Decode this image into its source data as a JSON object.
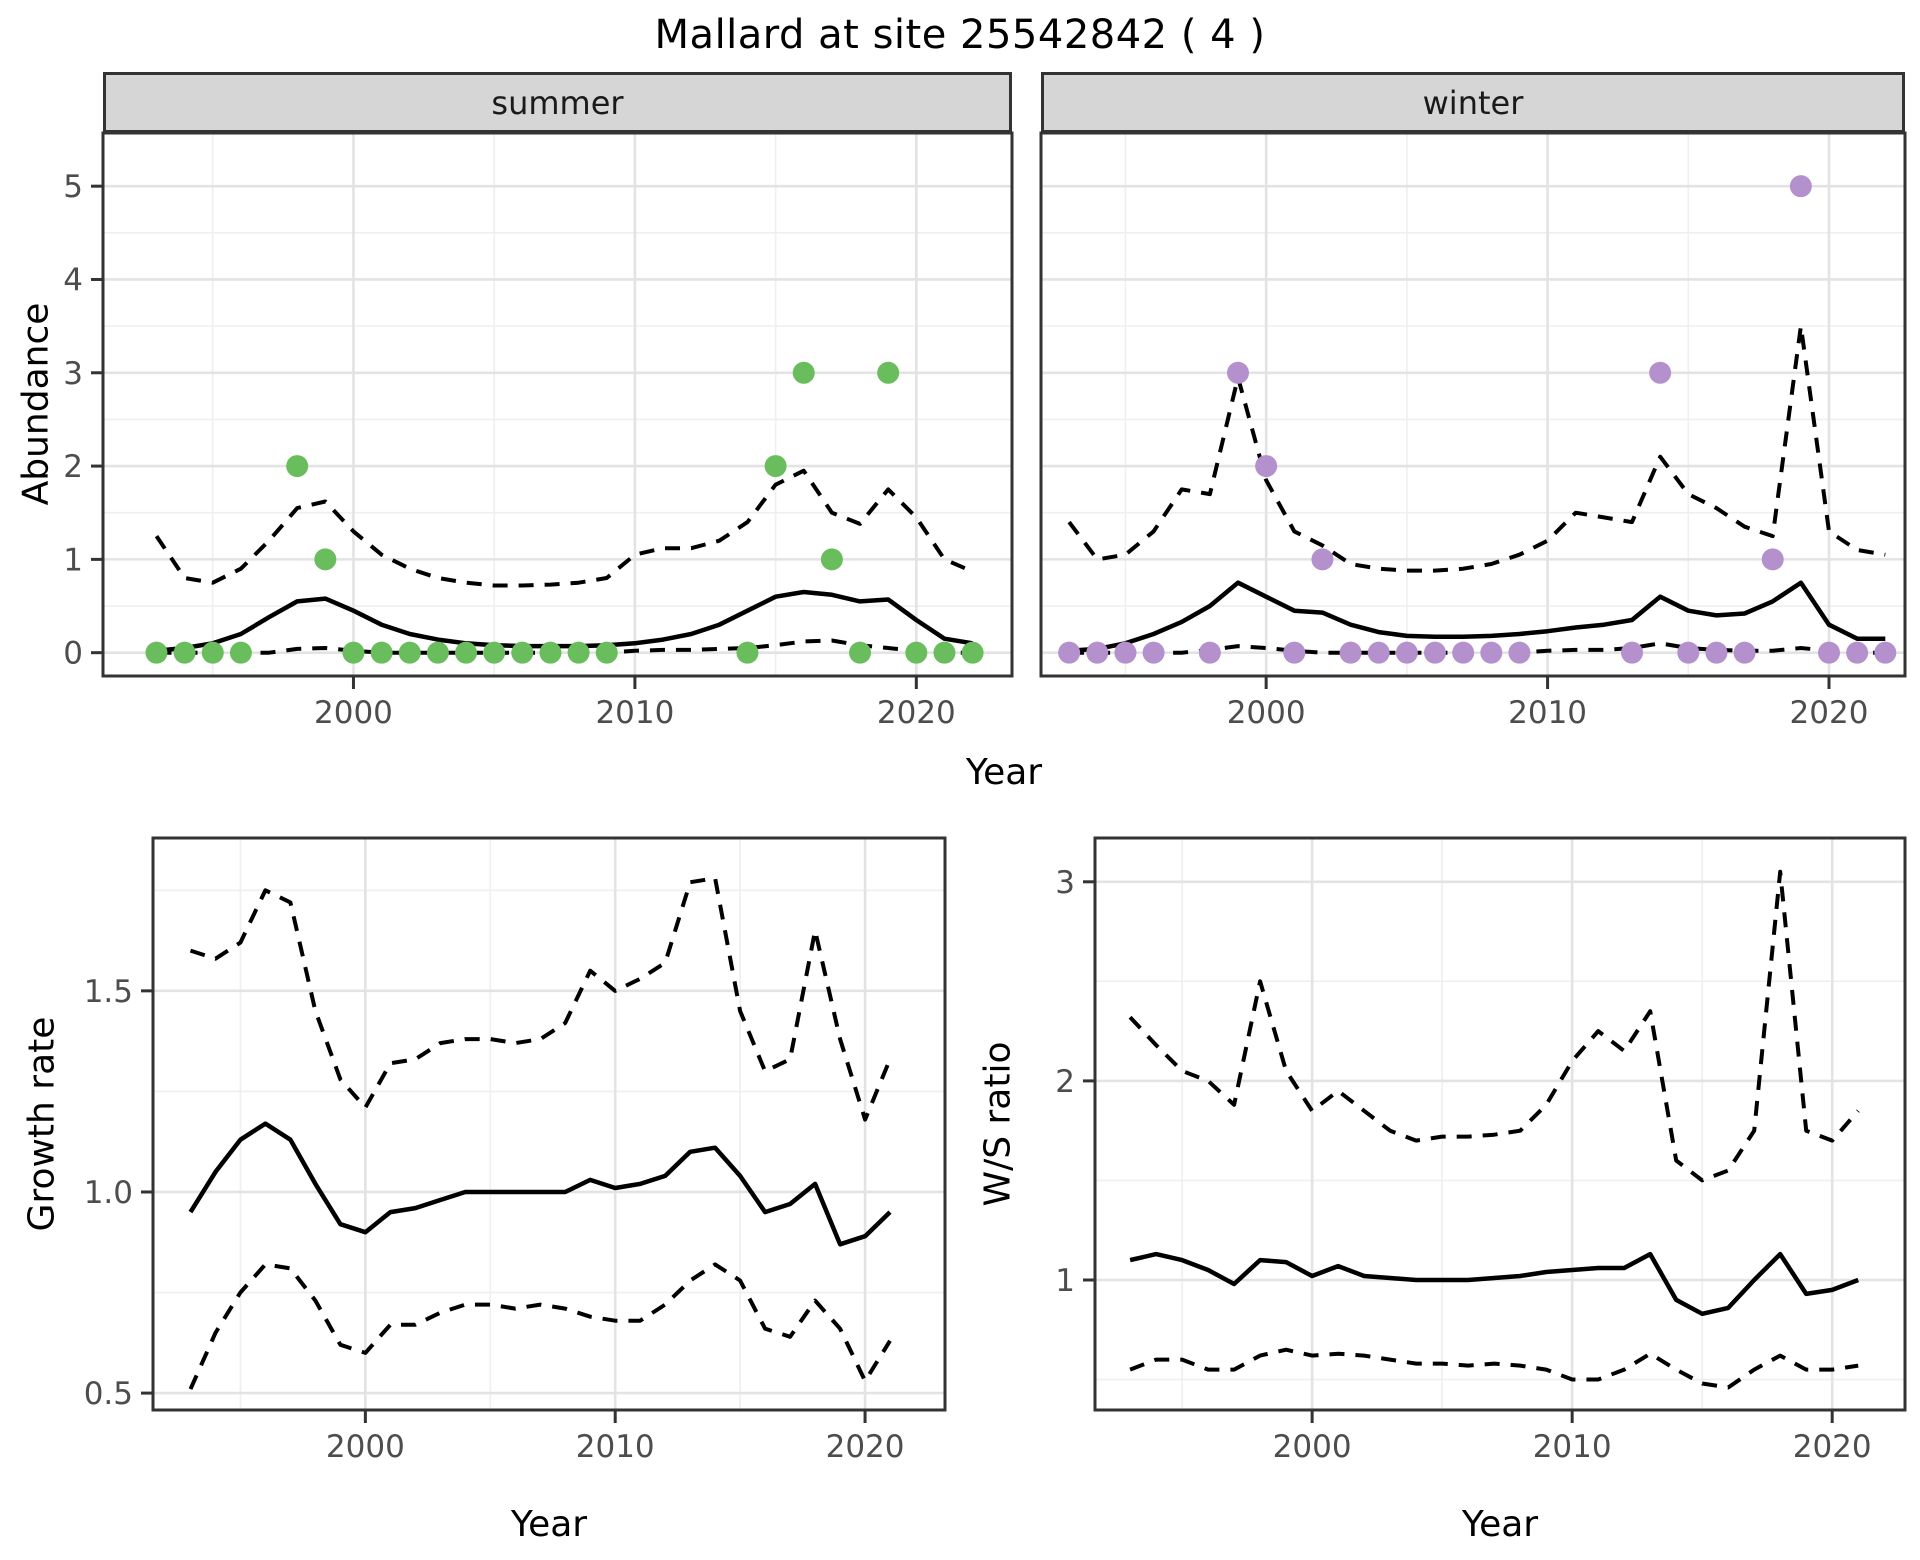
{
  "page": {
    "title": "Mallard at site 25542842 ( 4 )"
  },
  "labels": {
    "abundance_axis": "Abundance",
    "year_axis": "Year"
  },
  "colors": {
    "summer_point": "#6abd5c",
    "winter_point": "#b490cc",
    "line": "#000000",
    "strip_bg": "#d6d6d6",
    "panel_border": "#333333",
    "grid_major": "#e3e3e3",
    "grid_minor": "#efefef",
    "axis_text": "#4d4d4d",
    "strip_text": "#1a1a1a"
  },
  "chart_data": [
    {
      "type": "line",
      "facet_label": "summer",
      "xlabel": "Year",
      "ylabel": "Abundance",
      "legend_position": "none",
      "grid": true,
      "x": [
        1993,
        1994,
        1995,
        1996,
        1997,
        1998,
        1999,
        2000,
        2001,
        2002,
        2003,
        2004,
        2005,
        2006,
        2007,
        2008,
        2009,
        2010,
        2011,
        2012,
        2013,
        2014,
        2015,
        2016,
        2017,
        2018,
        2019,
        2020,
        2021,
        2022
      ],
      "series": [
        {
          "name": "mean",
          "style": "solid",
          "values": [
            0.02,
            0.05,
            0.1,
            0.2,
            0.38,
            0.55,
            0.58,
            0.45,
            0.3,
            0.2,
            0.14,
            0.1,
            0.08,
            0.07,
            0.07,
            0.07,
            0.08,
            0.1,
            0.14,
            0.2,
            0.3,
            0.45,
            0.6,
            0.65,
            0.62,
            0.55,
            0.57,
            0.35,
            0.15,
            0.1
          ]
        },
        {
          "name": "upper CI",
          "style": "dashed",
          "values": [
            1.25,
            0.8,
            0.75,
            0.9,
            1.2,
            1.55,
            1.62,
            1.3,
            1.05,
            0.9,
            0.8,
            0.75,
            0.72,
            0.72,
            0.73,
            0.75,
            0.8,
            1.05,
            1.12,
            1.12,
            1.2,
            1.4,
            1.8,
            1.95,
            1.5,
            1.38,
            1.75,
            1.45,
            1.0,
            0.87
          ]
        },
        {
          "name": "lower CI",
          "style": "dashed",
          "values": [
            0,
            0,
            0,
            0,
            0,
            0.04,
            0.05,
            0.02,
            0,
            0,
            0,
            0,
            0,
            0,
            0,
            0,
            0,
            0.02,
            0.03,
            0.03,
            0.04,
            0.05,
            0.08,
            0.12,
            0.13,
            0.08,
            0.05,
            0.02,
            0,
            0
          ]
        }
      ],
      "points": {
        "name": "observed-counts",
        "x": [
          1993,
          1994,
          1995,
          1996,
          1998,
          1999,
          2000,
          2001,
          2002,
          2003,
          2004,
          2005,
          2006,
          2007,
          2008,
          2009,
          2014,
          2015,
          2016,
          2017,
          2018,
          2019,
          2020,
          2021,
          2022
        ],
        "y": [
          0,
          0,
          0,
          0,
          2,
          1,
          0,
          0,
          0,
          0,
          0,
          0,
          0,
          0,
          0,
          0,
          0,
          2,
          3,
          1,
          0,
          3,
          0,
          0,
          0
        ]
      },
      "point_color": "#6abd5c",
      "xlim": [
        1991.1,
        2023.4
      ],
      "ylim": [
        -0.25,
        5.57
      ],
      "xticks": {
        "values": [
          2000,
          2010,
          2020
        ],
        "labels": [
          "2000",
          "2010",
          "2020"
        ],
        "minor": [
          1995,
          2005,
          2015
        ]
      },
      "yticks": {
        "show": true,
        "values": [
          0,
          1,
          2,
          3,
          4,
          5
        ],
        "labels": [
          "0",
          "1",
          "2",
          "3",
          "4",
          "5"
        ],
        "minor": [
          0.5,
          1.5,
          2.5,
          3.5,
          4.5
        ]
      }
    },
    {
      "type": "line",
      "facet_label": "winter",
      "xlabel": "Year",
      "ylabel": "Abundance",
      "legend_position": "none",
      "grid": true,
      "x": [
        1993,
        1994,
        1995,
        1996,
        1997,
        1998,
        1999,
        2000,
        2001,
        2002,
        2003,
        2004,
        2005,
        2006,
        2007,
        2008,
        2009,
        2010,
        2011,
        2012,
        2013,
        2014,
        2015,
        2016,
        2017,
        2018,
        2019,
        2020,
        2021,
        2022
      ],
      "series": [
        {
          "name": "mean",
          "style": "solid",
          "values": [
            0.02,
            0.04,
            0.1,
            0.2,
            0.33,
            0.5,
            0.75,
            0.6,
            0.45,
            0.43,
            0.3,
            0.22,
            0.18,
            0.17,
            0.17,
            0.18,
            0.2,
            0.23,
            0.27,
            0.3,
            0.35,
            0.6,
            0.45,
            0.4,
            0.42,
            0.55,
            0.75,
            0.3,
            0.15,
            0.15
          ]
        },
        {
          "name": "upper CI",
          "style": "dashed",
          "values": [
            1.4,
            1.0,
            1.05,
            1.3,
            1.75,
            1.7,
            2.95,
            1.85,
            1.3,
            1.15,
            0.95,
            0.9,
            0.88,
            0.88,
            0.9,
            0.95,
            1.05,
            1.2,
            1.5,
            1.45,
            1.4,
            2.1,
            1.7,
            1.55,
            1.35,
            1.25,
            3.5,
            1.3,
            1.1,
            1.05
          ]
        },
        {
          "name": "lower CI",
          "style": "dashed",
          "values": [
            0,
            0,
            0,
            0,
            0,
            0.03,
            0.07,
            0.05,
            0.02,
            0,
            0,
            0,
            0,
            0,
            0,
            0,
            0,
            0.02,
            0.03,
            0.03,
            0.05,
            0.1,
            0.05,
            0.03,
            0.02,
            0.02,
            0.05,
            0.02,
            0,
            0
          ]
        }
      ],
      "points": {
        "name": "observed-counts",
        "x": [
          1993,
          1994,
          1995,
          1996,
          1998,
          1999,
          2000,
          2001,
          2002,
          2003,
          2004,
          2005,
          2006,
          2007,
          2008,
          2009,
          2013,
          2014,
          2015,
          2016,
          2017,
          2018,
          2019,
          2020,
          2021,
          2022
        ],
        "y": [
          0,
          0,
          0,
          0,
          0,
          3,
          2,
          0,
          1,
          0,
          0,
          0,
          0,
          0,
          0,
          0,
          0,
          3,
          0,
          0,
          0,
          1,
          5,
          0,
          0,
          0
        ]
      },
      "point_color": "#b490cc",
      "xlim": [
        1992.0,
        2022.7
      ],
      "ylim": [
        -0.25,
        5.57
      ],
      "xticks": {
        "values": [
          2000,
          2010,
          2020
        ],
        "labels": [
          "2000",
          "2010",
          "2020"
        ],
        "minor": [
          1995,
          2005,
          2015
        ]
      },
      "yticks": {
        "show": false,
        "values": [
          0,
          1,
          2,
          3,
          4,
          5
        ],
        "labels": [
          "0",
          "1",
          "2",
          "3",
          "4",
          "5"
        ],
        "minor": [
          0.5,
          1.5,
          2.5,
          3.5,
          4.5
        ]
      }
    },
    {
      "type": "line",
      "facet_label": null,
      "xlabel": "Year",
      "ylabel": "Growth rate",
      "legend_position": "none",
      "grid": true,
      "x": [
        1993,
        1994,
        1995,
        1996,
        1997,
        1998,
        1999,
        2000,
        2001,
        2002,
        2003,
        2004,
        2005,
        2006,
        2007,
        2008,
        2009,
        2010,
        2011,
        2012,
        2013,
        2014,
        2015,
        2016,
        2017,
        2018,
        2019,
        2020,
        2021
      ],
      "series": [
        {
          "name": "mean",
          "style": "solid",
          "values": [
            0.95,
            1.05,
            1.13,
            1.17,
            1.13,
            1.02,
            0.92,
            0.9,
            0.95,
            0.96,
            0.98,
            1.0,
            1.0,
            1.0,
            1.0,
            1.0,
            1.03,
            1.01,
            1.02,
            1.04,
            1.1,
            1.11,
            1.04,
            0.95,
            0.97,
            1.02,
            0.87,
            0.89,
            0.95
          ]
        },
        {
          "name": "upper CI",
          "style": "dashed",
          "values": [
            1.6,
            1.58,
            1.62,
            1.75,
            1.72,
            1.45,
            1.28,
            1.21,
            1.32,
            1.33,
            1.37,
            1.38,
            1.38,
            1.37,
            1.38,
            1.42,
            1.55,
            1.5,
            1.53,
            1.57,
            1.77,
            1.78,
            1.45,
            1.3,
            1.33,
            1.65,
            1.38,
            1.18,
            1.33
          ]
        },
        {
          "name": "lower CI",
          "style": "dashed",
          "values": [
            0.51,
            0.65,
            0.75,
            0.82,
            0.81,
            0.73,
            0.62,
            0.6,
            0.67,
            0.67,
            0.7,
            0.72,
            0.72,
            0.71,
            0.72,
            0.71,
            0.69,
            0.68,
            0.68,
            0.72,
            0.78,
            0.82,
            0.78,
            0.66,
            0.64,
            0.73,
            0.66,
            0.53,
            0.63
          ]
        }
      ],
      "xlim": [
        1991.5,
        2023.2
      ],
      "ylim": [
        0.458,
        1.88
      ],
      "xticks": {
        "values": [
          2000,
          2010,
          2020
        ],
        "labels": [
          "2000",
          "2010",
          "2020"
        ],
        "minor": [
          1995,
          2005,
          2015
        ]
      },
      "yticks": {
        "show": true,
        "values": [
          0.5,
          1.0,
          1.5
        ],
        "labels": [
          "0.5",
          "1.0",
          "1.5"
        ],
        "minor": [
          0.75,
          1.25,
          1.75
        ]
      }
    },
    {
      "type": "line",
      "facet_label": null,
      "xlabel": "Year",
      "ylabel": "W/S ratio",
      "legend_position": "none",
      "grid": true,
      "x": [
        1993,
        1994,
        1995,
        1996,
        1997,
        1998,
        1999,
        2000,
        2001,
        2002,
        2003,
        2004,
        2005,
        2006,
        2007,
        2008,
        2009,
        2010,
        2011,
        2012,
        2013,
        2014,
        2015,
        2016,
        2017,
        2018,
        2019,
        2020,
        2021
      ],
      "series": [
        {
          "name": "mean",
          "style": "solid",
          "values": [
            1.1,
            1.13,
            1.1,
            1.05,
            0.98,
            1.1,
            1.09,
            1.02,
            1.07,
            1.02,
            1.01,
            1.0,
            1.0,
            1.0,
            1.01,
            1.02,
            1.04,
            1.05,
            1.06,
            1.06,
            1.13,
            0.9,
            0.83,
            0.86,
            1.0,
            1.13,
            0.93,
            0.95,
            1.0
          ]
        },
        {
          "name": "upper CI",
          "style": "dashed",
          "values": [
            2.32,
            2.18,
            2.05,
            2.0,
            1.88,
            2.5,
            2.05,
            1.85,
            1.95,
            1.85,
            1.75,
            1.7,
            1.72,
            1.72,
            1.73,
            1.75,
            1.88,
            2.1,
            2.25,
            2.15,
            2.35,
            1.6,
            1.5,
            1.55,
            1.75,
            3.05,
            1.75,
            1.7,
            1.85
          ]
        },
        {
          "name": "lower CI",
          "style": "dashed",
          "values": [
            0.55,
            0.6,
            0.6,
            0.55,
            0.55,
            0.62,
            0.65,
            0.62,
            0.63,
            0.62,
            0.6,
            0.58,
            0.58,
            0.57,
            0.58,
            0.57,
            0.55,
            0.5,
            0.5,
            0.55,
            0.63,
            0.55,
            0.48,
            0.46,
            0.55,
            0.62,
            0.55,
            0.55,
            0.57
          ]
        }
      ],
      "xlim": [
        1991.65,
        2022.8
      ],
      "ylim": [
        0.347,
        3.22
      ],
      "xticks": {
        "values": [
          2000,
          2010,
          2020
        ],
        "labels": [
          "2000",
          "2010",
          "2020"
        ],
        "minor": [
          1995,
          2005,
          2015
        ]
      },
      "yticks": {
        "show": true,
        "values": [
          1,
          2,
          3
        ],
        "labels": [
          "1",
          "2",
          "3"
        ],
        "minor": [
          0.5,
          1.5,
          2.5
        ]
      }
    }
  ]
}
